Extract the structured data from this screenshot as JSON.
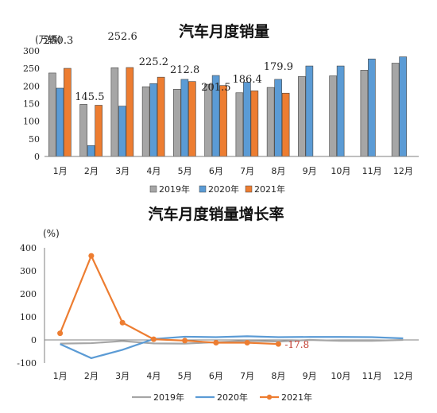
{
  "chart_data": [
    {
      "type": "bar",
      "title": "汽车月度销量",
      "unit_label": "(万辆)",
      "categories": [
        "1月",
        "2月",
        "3月",
        "4月",
        "5月",
        "6月",
        "7月",
        "8月",
        "9月",
        "10月",
        "11月",
        "12月"
      ],
      "ylim": [
        0,
        300
      ],
      "yticks": [
        "0",
        "50",
        "100",
        "150",
        "200",
        "250",
        "300"
      ],
      "series": [
        {
          "name": "2019年",
          "color": "#a6a6a6",
          "values": [
            237,
            148,
            252,
            198,
            191,
            205,
            181,
            196,
            227,
            229,
            245,
            265
          ]
        },
        {
          "name": "2020年",
          "color": "#5b9bd5",
          "values": [
            194,
            31,
            143,
            207,
            219,
            230,
            211,
            219,
            257,
            257,
            277,
            283
          ]
        },
        {
          "name": "2021年",
          "color": "#ed7d31",
          "values": [
            250.3,
            145.5,
            252.6,
            225.2,
            212.8,
            201.5,
            186.4,
            179.9,
            null,
            null,
            null,
            null
          ]
        }
      ],
      "data_labels": [
        "250.3",
        "145.5",
        "252.6",
        "225.2",
        "212.8",
        "201.5",
        "186.4",
        "179.9"
      ],
      "legend_position": "bottom"
    },
    {
      "type": "line",
      "title": "汽车月度销量增长率",
      "unit_label": "(%)",
      "categories": [
        "1月",
        "2月",
        "3月",
        "4月",
        "5月",
        "6月",
        "7月",
        "8月",
        "9月",
        "10月",
        "11月",
        "12月"
      ],
      "ylim": [
        -100,
        400
      ],
      "yticks": [
        "-100",
        "0",
        "100",
        "200",
        "300",
        "400"
      ],
      "series": [
        {
          "name": "2019年",
          "color": "#a6a6a6",
          "values": [
            -16,
            -14,
            -5,
            -15,
            -16,
            -10,
            -4,
            -7,
            0,
            -4,
            -4,
            0
          ]
        },
        {
          "name": "2020年",
          "color": "#5b9bd5",
          "values": [
            -18,
            -79,
            -43,
            4,
            14,
            12,
            16,
            12,
            13,
            13,
            12,
            7
          ]
        },
        {
          "name": "2021年",
          "color": "#ed7d31",
          "values": [
            29,
            365,
            75,
            3,
            -3,
            -12,
            -12,
            -17.8,
            null,
            null,
            null,
            null
          ]
        }
      ],
      "data_labels": [
        "-17.8"
      ],
      "legend_position": "bottom"
    }
  ]
}
